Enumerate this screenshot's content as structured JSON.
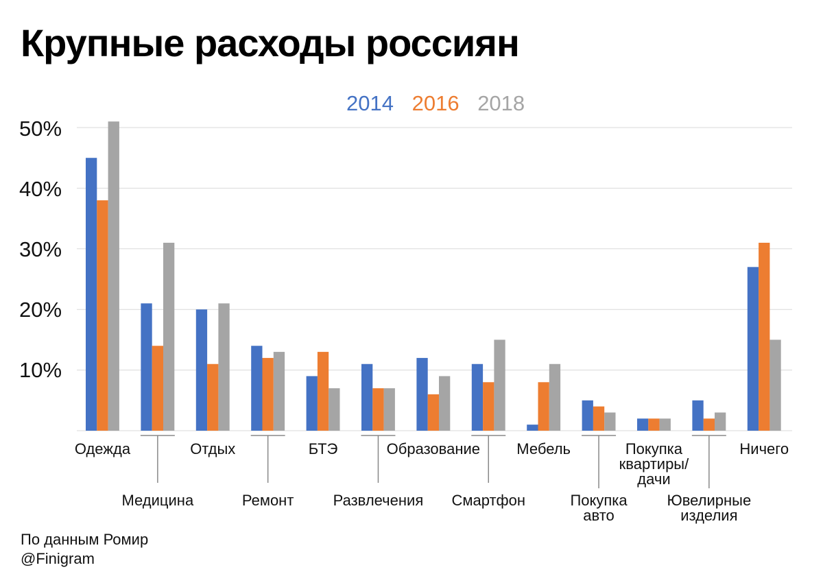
{
  "chart_data": {
    "type": "bar",
    "title": "Крупные расходы россиян",
    "ylim": [
      0,
      50
    ],
    "yticks": [
      "10%",
      "20%",
      "30%",
      "40%",
      "50%"
    ],
    "ytick_values": [
      10,
      20,
      30,
      40,
      50
    ],
    "legend_position": "top-center",
    "categories": [
      "Одежда",
      "Медицина",
      "Отдых",
      "Ремонт",
      "БТЭ",
      "Развлечения",
      "Образование",
      "Смартфон",
      "Мебель",
      "Покупка авто",
      "Покупка квартиры/ дачи",
      "Ювелирные изделия",
      "Ничего"
    ],
    "category_label_lines": [
      [
        "Одежда"
      ],
      [
        "Медицина"
      ],
      [
        "Отдых"
      ],
      [
        "Ремонт"
      ],
      [
        "БТЭ"
      ],
      [
        "Развлечения"
      ],
      [
        "Образование"
      ],
      [
        "Смартфон"
      ],
      [
        "Мебель"
      ],
      [
        "Покупка",
        "авто"
      ],
      [
        "Покупка",
        "квартиры/",
        "дачи"
      ],
      [
        "Ювелирные",
        "изделия"
      ],
      [
        "Ничего"
      ]
    ],
    "series": [
      {
        "name": "2014",
        "color": "#4472c4",
        "values": [
          45,
          21,
          20,
          14,
          9,
          11,
          12,
          11,
          1,
          5,
          2,
          5,
          27
        ]
      },
      {
        "name": "2016",
        "color": "#ed7d31",
        "values": [
          38,
          14,
          11,
          12,
          13,
          7,
          6,
          8,
          8,
          4,
          2,
          2,
          31
        ]
      },
      {
        "name": "2018",
        "color": "#a5a5a5",
        "values": [
          51,
          31,
          21,
          13,
          7,
          7,
          9,
          15,
          11,
          3,
          2,
          3,
          15
        ]
      }
    ]
  },
  "source": {
    "line1": "По данным Ромир",
    "line2": "@Finigram"
  }
}
